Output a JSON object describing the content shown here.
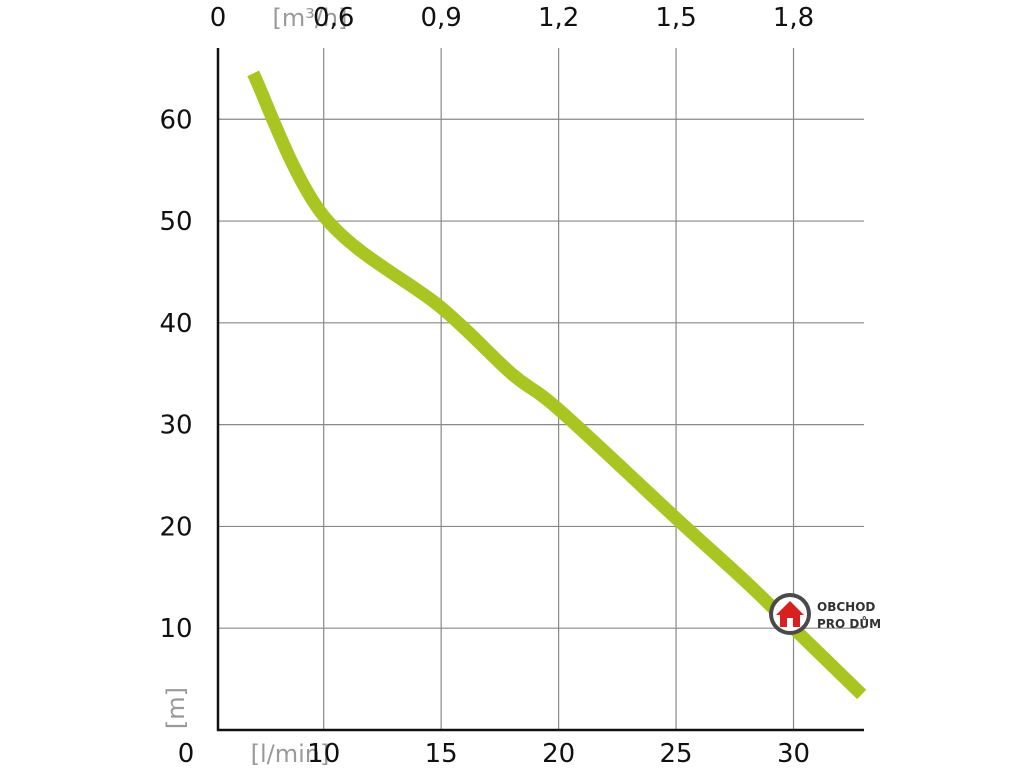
{
  "chart_data": {
    "type": "line",
    "title": "",
    "x_axis_bottom": {
      "label": "[l/min]",
      "origin_label": "0",
      "ticks": [
        10,
        15,
        20,
        25,
        30
      ],
      "tick_labels": [
        "10",
        "15",
        "20",
        "25",
        "30"
      ]
    },
    "x_axis_top": {
      "label": "[m³/h]",
      "origin_label": "0",
      "ticks": [
        0.6,
        0.9,
        1.2,
        1.5,
        1.8
      ],
      "tick_labels": [
        "0,6",
        "0,9",
        "1,2",
        "1,5",
        "1,8"
      ]
    },
    "y_axis": {
      "label": "[m]",
      "origin_label": "0",
      "ticks": [
        10,
        20,
        30,
        40,
        50,
        60
      ],
      "tick_labels": [
        "10",
        "20",
        "30",
        "40",
        "50",
        "60"
      ]
    },
    "xlim": [
      5.5,
      33
    ],
    "ylim": [
      0,
      67
    ],
    "grid": true,
    "series": [
      {
        "color": "#a9c521",
        "x": [
          7.0,
          10.0,
          15.0,
          18.0,
          20.0,
          25.0,
          28.0,
          30.0,
          32.9
        ],
        "y": [
          64.5,
          50.5,
          41.5,
          35.0,
          31.5,
          20.8,
          14.5,
          10.0,
          3.5
        ]
      }
    ],
    "axis_color": "#111111",
    "grid_color": "#888888"
  },
  "watermark": {
    "line1": "OBCHOD",
    "line2": "PRO DŮM"
  }
}
